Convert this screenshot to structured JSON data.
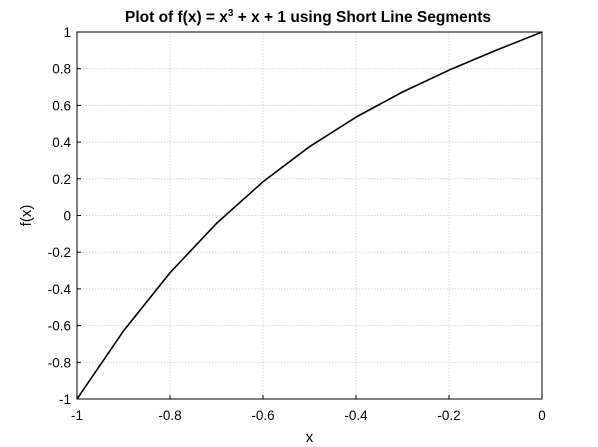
{
  "chart_data": {
    "type": "line",
    "title": "Plot of f(x) = x³ + x + 1 using Short Line Segments",
    "title_parts": {
      "before": "Plot of f(x) = x",
      "superscript": "3",
      "after": " + x + 1 using Short Line Segments"
    },
    "xlabel": "x",
    "ylabel": "f(x)",
    "xlim": [
      -1,
      0
    ],
    "ylim": [
      -1,
      1
    ],
    "grid": true,
    "x_ticks": [
      "-1",
      "-0.8",
      "-0.6",
      "-0.4",
      "-0.2",
      "0"
    ],
    "y_ticks": [
      "-1",
      "-0.8",
      "-0.6",
      "-0.4",
      "-0.2",
      "0",
      "0.2",
      "0.4",
      "0.6",
      "0.8",
      "1"
    ],
    "series": [
      {
        "color": "#000000",
        "x": [
          -1.0,
          -0.9,
          -0.8,
          -0.7,
          -0.6,
          -0.5,
          -0.4,
          -0.3,
          -0.2,
          -0.1,
          0.0
        ],
        "y": [
          -1.0,
          -0.629,
          -0.312,
          -0.043,
          0.184,
          0.375,
          0.536,
          0.673,
          0.792,
          0.899,
          1.0
        ]
      }
    ]
  }
}
